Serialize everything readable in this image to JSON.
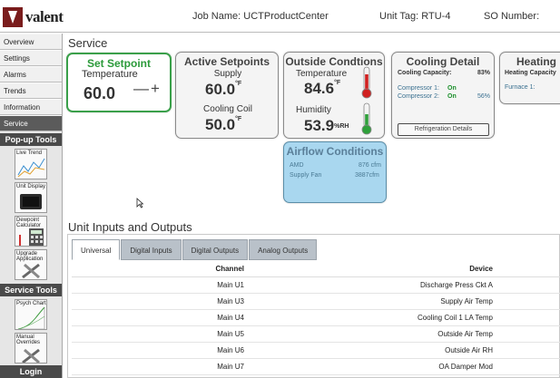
{
  "header": {
    "brand": "valent",
    "job_name": "Job Name: UCTProductCenter",
    "unit_tag": "Unit Tag: RTU-4",
    "so_number": "SO Number:"
  },
  "sidebar": {
    "nav": [
      {
        "label": "Overview",
        "active": false
      },
      {
        "label": "Settings",
        "active": false
      },
      {
        "label": "Alarms",
        "active": false
      },
      {
        "label": "Trends",
        "active": false
      },
      {
        "label": "Information",
        "active": false
      },
      {
        "label": "Service",
        "active": true
      }
    ],
    "popup_tools_title": "Pop-up Tools",
    "popup_tools": [
      {
        "label": "Live Trend",
        "icon": "live-trend-icon"
      },
      {
        "label": "Unit Display",
        "icon": "unit-display-icon"
      },
      {
        "label": "Dewpoint Calculator",
        "icon": "calculator-icon"
      },
      {
        "label": "Upgrade Application",
        "icon": "upgrade-icon"
      }
    ],
    "service_tools_title": "Service Tools",
    "service_tools": [
      {
        "label": "Psych Chart",
        "icon": "psych-chart-icon"
      },
      {
        "label": "Manual Overrides",
        "icon": "overrides-icon"
      }
    ],
    "login_title": "Login"
  },
  "service": {
    "title": "Service",
    "set_setpoint": {
      "title": "Set Setpoint",
      "label": "Temperature",
      "value": "60.0",
      "controls": "—+"
    },
    "active_setpoints": {
      "title": "Active Setpoints",
      "supply_label": "Supply",
      "supply_value": "60.0",
      "supply_unit": "°F",
      "coil_label": "Cooling Coil",
      "coil_value": "50.0",
      "coil_unit": "°F"
    },
    "outside_conditions": {
      "title": "Outside Condtions",
      "temp_label": "Temperature",
      "temp_value": "84.6",
      "temp_unit": "°F",
      "humidity_label": "Humidity",
      "humidity_value": "53.9",
      "humidity_unit": "%RH"
    },
    "cooling_detail": {
      "title": "Cooling Detail",
      "capacity_label": "Cooling Capacity:",
      "capacity_value": "83%",
      "compressor1_label": "Compressor 1:",
      "compressor1_state": "On",
      "compressor2_label": "Compressor 2:",
      "compressor2_state": "On",
      "compressor2_pct": "56%",
      "button": "Refrigeration Details"
    },
    "heating": {
      "title": "Heating",
      "capacity_label": "Heating Capacity",
      "furnace_label": "Furnace 1:"
    },
    "airflow": {
      "title": "Airflow Conditions",
      "amd_label": "AMD",
      "amd_value": "876 cfm",
      "fan_label": "Supply Fan",
      "fan_value": "3887cfm"
    }
  },
  "io": {
    "title": "Unit Inputs and Outputs",
    "tabs": [
      {
        "label": "Universal",
        "active": true
      },
      {
        "label": "Digital Inputs",
        "active": false
      },
      {
        "label": "Digital Outputs",
        "active": false
      },
      {
        "label": "Analog Outputs",
        "active": false
      }
    ],
    "columns": {
      "channel": "Channel",
      "device": "Device"
    },
    "rows": [
      {
        "channel": "Main U1",
        "device": "Discharge Press Ckt A"
      },
      {
        "channel": "Main U3",
        "device": "Supply Air Temp"
      },
      {
        "channel": "Main U4",
        "device": "Cooling Coil 1 LA Temp"
      },
      {
        "channel": "Main U5",
        "device": "Outside Air Temp"
      },
      {
        "channel": "Main U6",
        "device": "Outside Air RH"
      },
      {
        "channel": "Main U7",
        "device": "OA Damper Mod"
      }
    ]
  },
  "colors": {
    "setpoint_green": "#2b9a3a",
    "airflow_blue": "#a9d7ef",
    "brand_red": "#7a1c1c",
    "status_on": "#1a8f2a",
    "thermo_red": "#d02020",
    "thermo_green": "#2ea03a"
  }
}
